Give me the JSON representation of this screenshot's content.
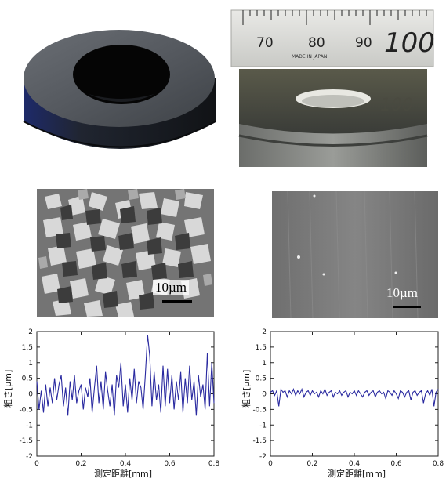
{
  "ruler": {
    "numbers": [
      "70",
      "80",
      "90",
      "100"
    ],
    "fine_print": "MADE IN JAPAN",
    "reflection_number": "100"
  },
  "sem_left": {
    "scale_label": "10µm"
  },
  "sem_right": {
    "scale_label": "10µm"
  },
  "chart_data": [
    {
      "type": "line",
      "xlabel": "測定距離[mm]",
      "ylabel": "粗さ[μm]",
      "xlim": [
        0,
        0.8
      ],
      "ylim": [
        -2,
        2
      ],
      "x_ticks": [
        "0",
        "0.2",
        "0.4",
        "0.6",
        "0.8"
      ],
      "y_ticks": [
        "2",
        "1.5",
        "1",
        "0.5",
        "0",
        "-0.5",
        "-1",
        "-1.5",
        "-2"
      ],
      "color": "#2a2aa0",
      "series": [
        {
          "x": [
            0,
            0.01,
            0.02,
            0.03,
            0.04,
            0.05,
            0.06,
            0.07,
            0.08,
            0.09,
            0.1,
            0.11,
            0.12,
            0.13,
            0.14,
            0.15,
            0.16,
            0.17,
            0.18,
            0.19,
            0.2,
            0.21,
            0.22,
            0.23,
            0.24,
            0.25,
            0.26,
            0.27,
            0.28,
            0.29,
            0.3,
            0.31,
            0.32,
            0.33,
            0.34,
            0.35,
            0.36,
            0.37,
            0.38,
            0.39,
            0.4,
            0.41,
            0.42,
            0.43,
            0.44,
            0.45,
            0.46,
            0.47,
            0.48,
            0.49,
            0.5,
            0.51,
            0.52,
            0.53,
            0.54,
            0.55,
            0.56,
            0.57,
            0.58,
            0.59,
            0.6,
            0.61,
            0.62,
            0.63,
            0.64,
            0.65,
            0.66,
            0.67,
            0.68,
            0.69,
            0.7,
            0.71,
            0.72,
            0.73,
            0.74,
            0.75,
            0.76,
            0.77,
            0.78,
            0.79,
            0.8
          ],
          "y": [
            0.4,
            -0.5,
            0.1,
            -0.6,
            0.3,
            -0.4,
            0.2,
            -0.3,
            0.5,
            -0.2,
            0.3,
            0.6,
            -0.4,
            0.2,
            -0.7,
            0.4,
            -0.2,
            0.6,
            -0.3,
            0.1,
            0.3,
            -0.5,
            0.2,
            -0.1,
            0.5,
            -0.6,
            0.2,
            0.9,
            -0.3,
            0.4,
            -0.5,
            0.7,
            0.1,
            -0.4,
            0.3,
            -0.7,
            0.6,
            0.2,
            1.0,
            -0.4,
            0.3,
            -0.6,
            0.5,
            -0.2,
            0.8,
            -0.3,
            0.4,
            0.2,
            -0.5,
            0.6,
            1.9,
            1.2,
            -0.4,
            0.7,
            -0.2,
            0.3,
            -0.6,
            0.9,
            -0.4,
            0.8,
            -0.3,
            0.6,
            -0.5,
            0.4,
            -0.2,
            0.7,
            -0.6,
            0.5,
            -0.3,
            0.9,
            -0.2,
            0.4,
            -0.7,
            0.6,
            -0.1,
            0.3,
            -0.5,
            1.3,
            -0.4,
            1.0,
            -0.3
          ]
        }
      ]
    },
    {
      "type": "line",
      "xlabel": "測定距離[mm]",
      "ylabel": "粗さ[μm]",
      "xlim": [
        0,
        0.8
      ],
      "ylim": [
        -2,
        2
      ],
      "x_ticks": [
        "0",
        "0.2",
        "0.4",
        "0.6",
        "0.8"
      ],
      "y_ticks": [
        "2",
        "1.5",
        "1",
        "0.5",
        "0",
        "-0.5",
        "-1",
        "-1.5",
        "-2"
      ],
      "color": "#2a2aa0",
      "series": [
        {
          "x": [
            0,
            0.01,
            0.02,
            0.03,
            0.04,
            0.05,
            0.06,
            0.07,
            0.08,
            0.09,
            0.1,
            0.11,
            0.12,
            0.13,
            0.14,
            0.15,
            0.16,
            0.17,
            0.18,
            0.19,
            0.2,
            0.21,
            0.22,
            0.23,
            0.24,
            0.25,
            0.26,
            0.27,
            0.28,
            0.29,
            0.3,
            0.31,
            0.32,
            0.33,
            0.34,
            0.35,
            0.36,
            0.37,
            0.38,
            0.39,
            0.4,
            0.41,
            0.42,
            0.43,
            0.44,
            0.45,
            0.46,
            0.47,
            0.48,
            0.49,
            0.5,
            0.51,
            0.52,
            0.53,
            0.54,
            0.55,
            0.56,
            0.57,
            0.58,
            0.59,
            0.6,
            0.61,
            0.62,
            0.63,
            0.64,
            0.65,
            0.66,
            0.67,
            0.68,
            0.69,
            0.7,
            0.71,
            0.72,
            0.73,
            0.74,
            0.75,
            0.76,
            0.77,
            0.78,
            0.79,
            0.8
          ],
          "y": [
            0.05,
            0.1,
            -0.05,
            0.1,
            -0.4,
            0.15,
            0.05,
            0.1,
            -0.1,
            0.1,
            0.0,
            0.15,
            -0.05,
            0.1,
            0.0,
            0.15,
            -0.1,
            0.05,
            0.1,
            -0.05,
            0.1,
            0.0,
            0.05,
            -0.1,
            0.1,
            0.0,
            0.15,
            -0.05,
            0.05,
            0.1,
            -0.1,
            0.05,
            0.0,
            0.1,
            -0.05,
            0.05,
            0.1,
            -0.1,
            0.05,
            0.0,
            0.1,
            -0.05,
            0.1,
            0.0,
            -0.1,
            0.05,
            0.1,
            -0.05,
            0.05,
            0.1,
            -0.1,
            0.05,
            0.1,
            0.0,
            0.05,
            -0.15,
            0.1,
            0.05,
            -0.05,
            0.1,
            0.0,
            -0.15,
            0.1,
            0.05,
            -0.1,
            0.05,
            0.1,
            -0.2,
            0.05,
            0.1,
            -0.05,
            0.05,
            0.1,
            -0.3,
            0.0,
            0.1,
            -0.05,
            0.15,
            -0.4,
            0.05,
            0.15
          ]
        }
      ]
    }
  ]
}
